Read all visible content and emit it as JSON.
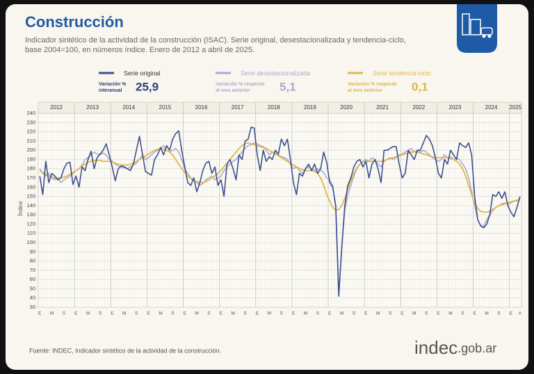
{
  "chart_data": {
    "type": "line",
    "title": "Construcción",
    "subtitle": [
      "Indicador sintético de la actividad de la construcción (ISAC). Serie original, desestacionalizada y tendencia-ciclo,",
      "base 2004=100, en números índice. Enero de 2012 a abril de 2025."
    ],
    "y_label": "Índice",
    "source": "Fuente: INDEC, Indicador sintético de la actividad de la construcción.",
    "logo": "indec",
    "logo_suffix": ".gob.ar",
    "years": [
      "2012",
      "2013",
      "2014",
      "2015",
      "2016",
      "2017",
      "2018",
      "2019",
      "2020",
      "2021",
      "2022",
      "2023",
      "2024",
      "2025"
    ],
    "categories": [
      "E",
      null,
      null,
      null,
      "M",
      null,
      null,
      null,
      "S",
      null,
      null,
      null,
      "E",
      null,
      null,
      null,
      "M",
      null,
      null,
      null,
      "S",
      null,
      null,
      null,
      "E",
      null,
      null,
      null,
      "M",
      null,
      null,
      null,
      "S",
      null,
      null,
      null,
      "E",
      null,
      null,
      null,
      "M",
      null,
      null,
      null,
      "S",
      null,
      null,
      null,
      "E",
      null,
      null,
      null,
      "M",
      null,
      null,
      null,
      "S",
      null,
      null,
      null,
      "E",
      null,
      null,
      null,
      "M",
      null,
      null,
      null,
      "S",
      null,
      null,
      null,
      "E",
      null,
      null,
      null,
      "M",
      null,
      null,
      null,
      "S",
      null,
      null,
      null,
      "E",
      null,
      null,
      null,
      "M",
      null,
      null,
      null,
      "S",
      null,
      null,
      null,
      "E",
      null,
      null,
      null,
      "M",
      null,
      null,
      null,
      "S",
      null,
      null,
      null,
      "E",
      null,
      null,
      null,
      "M",
      null,
      null,
      null,
      "S",
      null,
      null,
      null,
      "E",
      null,
      null,
      null,
      "M",
      null,
      null,
      null,
      "S",
      null,
      null,
      null,
      "E",
      null,
      null,
      null,
      "M",
      null,
      null,
      null,
      "S",
      null,
      null,
      null,
      "E",
      null,
      null,
      null,
      "M",
      null,
      null,
      null,
      "S",
      null,
      null,
      null,
      "E",
      null,
      null,
      "A"
    ],
    "ylim": [
      30,
      240
    ],
    "yticks": [
      30,
      40,
      50,
      60,
      70,
      80,
      90,
      100,
      110,
      120,
      130,
      140,
      150,
      160,
      170,
      180,
      190,
      200,
      210,
      220,
      230,
      240
    ],
    "grid": true,
    "series": [
      {
        "name": "Serie original",
        "color": "#3d4f8e",
        "stat_label": [
          "Variación %",
          "interanual"
        ],
        "stat": "25,9",
        "values": [
          172,
          152,
          188,
          165,
          175,
          172,
          168,
          170,
          180,
          186,
          187,
          163,
          172,
          160,
          182,
          178,
          190,
          199,
          180,
          192,
          196,
          200,
          207,
          195,
          182,
          167,
          180,
          183,
          182,
          180,
          178,
          185,
          200,
          215,
          196,
          177,
          175,
          173,
          190,
          195,
          203,
          195,
          205,
          200,
          212,
          218,
          221,
          200,
          182,
          165,
          162,
          170,
          155,
          165,
          178,
          186,
          188,
          175,
          182,
          162,
          168,
          150,
          185,
          190,
          180,
          168,
          195,
          190,
          210,
          212,
          225,
          224,
          195,
          178,
          200,
          188,
          193,
          190,
          200,
          196,
          212,
          205,
          212,
          190,
          165,
          152,
          175,
          172,
          180,
          185,
          178,
          185,
          175,
          180,
          198,
          187,
          165,
          160,
          140,
          42,
          95,
          140,
          162,
          170,
          182,
          188,
          190,
          182,
          188,
          170,
          185,
          190,
          180,
          165,
          200,
          200,
          202,
          204,
          204,
          185,
          170,
          175,
          200,
          195,
          190,
          200,
          200,
          208,
          216,
          212,
          205,
          192,
          175,
          170,
          190,
          185,
          200,
          195,
          190,
          208,
          205,
          203,
          208,
          195,
          150,
          125,
          118,
          116,
          120,
          130,
          152,
          150,
          155,
          148,
          155,
          140,
          133,
          128,
          138,
          150
        ]
      },
      {
        "name": "Serie desestacionalizada",
        "color": "#a9abd2",
        "stat_label": [
          "Variación % respecto",
          "al mes anterior"
        ],
        "stat": "5,1",
        "values": [
          180,
          175,
          172,
          175,
          170,
          168,
          170,
          165,
          168,
          170,
          172,
          175,
          178,
          180,
          184,
          190,
          192,
          195,
          198,
          196,
          195,
          197,
          195,
          190,
          188,
          185,
          183,
          182,
          181,
          180,
          182,
          184,
          186,
          190,
          195,
          190,
          192,
          195,
          198,
          200,
          202,
          205,
          200,
          198,
          200,
          202,
          198,
          190,
          180,
          175,
          170,
          168,
          165,
          162,
          164,
          168,
          170,
          172,
          168,
          170,
          172,
          178,
          182,
          185,
          188,
          190,
          195,
          198,
          202,
          205,
          206,
          208,
          207,
          205,
          204,
          200,
          195,
          198,
          197,
          195,
          193,
          192,
          190,
          185,
          180,
          182,
          178,
          175,
          180,
          182,
          180,
          178,
          180,
          178,
          176,
          170,
          168,
          162,
          138,
          45,
          95,
          135,
          152,
          162,
          172,
          180,
          185,
          188,
          190,
          188,
          192,
          190,
          185,
          182,
          188,
          190,
          192,
          190,
          192,
          195,
          196,
          198,
          200,
          202,
          198,
          200,
          198,
          200,
          198,
          195,
          192,
          190,
          188,
          190,
          195,
          192,
          193,
          190,
          192,
          190,
          185,
          180,
          170,
          155,
          140,
          125,
          118,
          118,
          125,
          130,
          135,
          138,
          140,
          142,
          143,
          142,
          143,
          145,
          145,
          148
        ]
      },
      {
        "name": "Serie tendencia-ciclo",
        "color": "#e2b645",
        "stat_label": [
          "Variación % respecto",
          "al mes anterior"
        ],
        "stat": "0,1",
        "values": [
          178,
          176,
          174,
          172,
          171,
          170,
          170,
          170,
          171,
          172,
          174,
          176,
          178,
          180,
          183,
          185,
          187,
          188,
          189,
          189,
          189,
          188,
          188,
          188,
          187,
          186,
          185,
          184,
          184,
          184,
          185,
          186,
          188,
          190,
          192,
          194,
          196,
          198,
          200,
          201,
          202,
          201,
          200,
          198,
          195,
          190,
          185,
          180,
          176,
          172,
          169,
          167,
          166,
          165,
          165,
          166,
          168,
          170,
          172,
          175,
          178,
          182,
          186,
          190,
          194,
          198,
          202,
          205,
          207,
          208,
          207,
          206,
          205,
          204,
          203,
          202,
          200,
          198,
          196,
          194,
          192,
          190,
          188,
          186,
          184,
          182,
          180,
          179,
          178,
          178,
          178,
          177,
          175,
          170,
          162,
          152,
          145,
          138,
          135,
          136,
          140,
          148,
          158,
          167,
          175,
          181,
          185,
          187,
          188,
          188,
          188,
          188,
          188,
          188,
          189,
          190,
          191,
          192,
          193,
          194,
          195,
          196,
          197,
          198,
          198,
          198,
          197,
          196,
          195,
          194,
          193,
          192,
          192,
          192,
          192,
          192,
          191,
          190,
          188,
          185,
          180,
          172,
          162,
          152,
          143,
          137,
          134,
          133,
          133,
          134,
          136,
          138,
          140,
          141,
          142,
          143,
          144,
          145,
          146,
          146
        ]
      }
    ]
  }
}
